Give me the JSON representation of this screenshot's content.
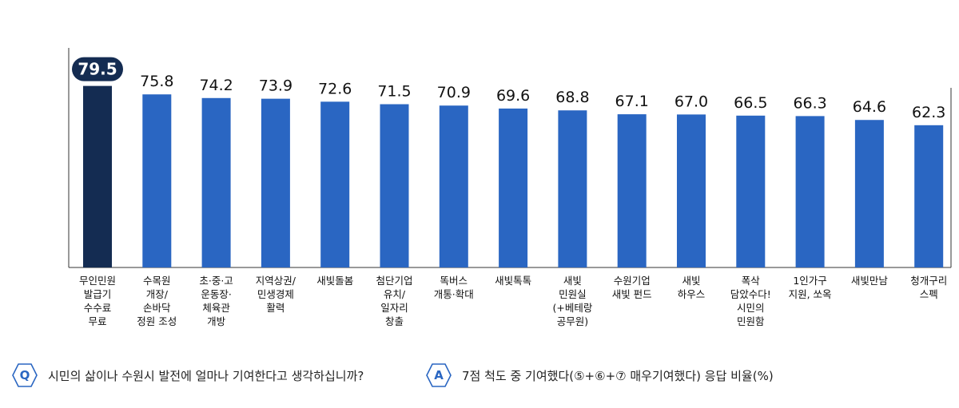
{
  "chart_data": {
    "type": "bar",
    "categories": [
      "무인민원\n발급기\n수수료\n무료",
      "수목원\n개장/\n손바닥\n정원 조성",
      "초·중·고\n운동장·\n체육관\n개방",
      "지역상권/\n민생경제\n활력",
      "새빛돌봄",
      "첨단기업\n유치/\n일자리\n창출",
      "똑버스\n개통·확대",
      "새빛톡톡",
      "새빛\n민원실\n(+베테랑\n공무원)",
      "수원기업\n새빛 펀드",
      "새빛\n하우스",
      "폭삭\n담았수다!\n시민의\n민원함",
      "1인가구\n지원, 쏘옥",
      "새빛만남",
      "청개구리\n스펙"
    ],
    "values": [
      79.5,
      75.8,
      74.2,
      73.9,
      72.6,
      71.5,
      70.9,
      69.6,
      68.8,
      67.1,
      67.0,
      66.5,
      66.3,
      64.6,
      62.3
    ],
    "value_labels": [
      "79.5",
      "75.8",
      "74.2",
      "73.9",
      "72.6",
      "71.5",
      "70.9",
      "69.6",
      "68.8",
      "67.1",
      "67.0",
      "66.5",
      "66.3",
      "64.6",
      "62.3"
    ],
    "highlight_index": 0,
    "colors": {
      "bar": "#2a66c2",
      "highlight": "#142c52",
      "axis": "#333333",
      "label_text": "#111111",
      "badge_text": "#ffffff"
    },
    "ylim": [
      0,
      100
    ],
    "grid": false,
    "title": "",
    "xlabel": "",
    "ylabel": ""
  },
  "footer": {
    "question_badge": "Q",
    "question": "시민의 삶이나 수원시 발전에 얼마나 기여한다고 생각하십니까?",
    "answer_badge": "A",
    "answer": "7점 척도 중 기여했다(⑤+⑥+⑦ 매우기여했다) 응답 비율(%)"
  }
}
